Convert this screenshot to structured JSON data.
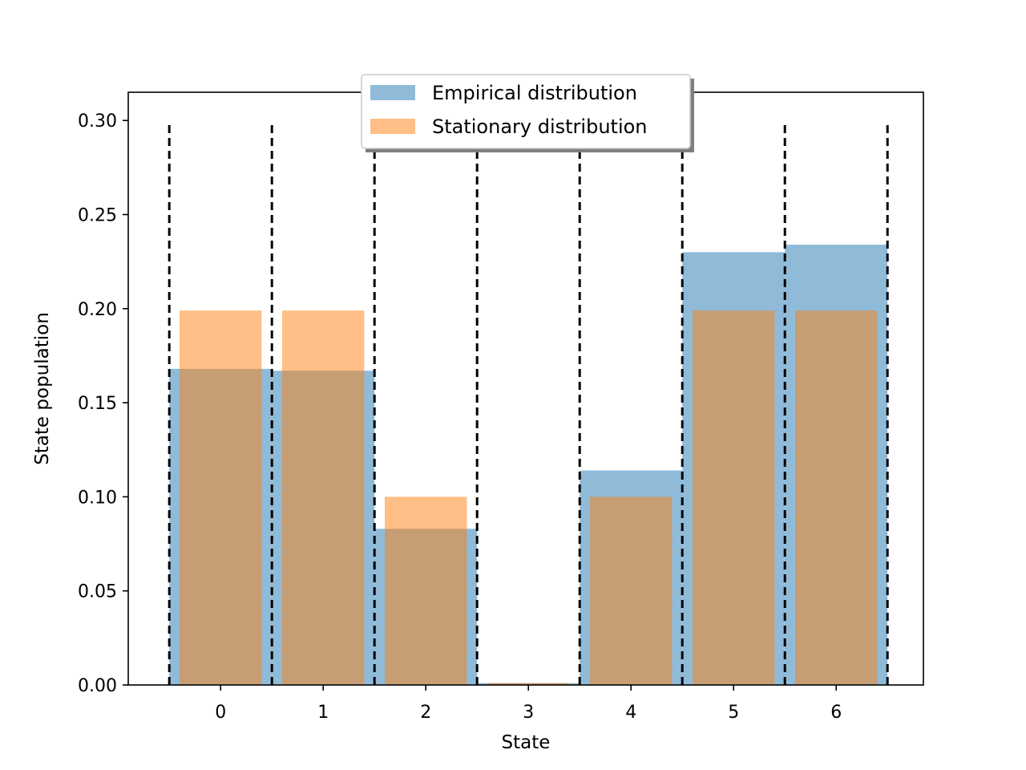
{
  "chart_data": {
    "type": "bar",
    "title": "",
    "xlabel": "State",
    "ylabel": "State population",
    "categories": [
      "0",
      "1",
      "2",
      "3",
      "4",
      "5",
      "6"
    ],
    "x": [
      0,
      1,
      2,
      3,
      4,
      5,
      6
    ],
    "xlim": [
      -0.9,
      6.85
    ],
    "ylim": [
      0,
      0.315
    ],
    "yticks": [
      0.0,
      0.05,
      0.1,
      0.15,
      0.2,
      0.25,
      0.3
    ],
    "ytick_labels": [
      "0.00",
      "0.05",
      "0.10",
      "0.15",
      "0.20",
      "0.25",
      "0.30"
    ],
    "legend_position": "top-center",
    "grid": false,
    "series": [
      {
        "name": "Empirical distribution",
        "color": "#1f77b4",
        "opacity": 0.5,
        "bar_width": 1.0,
        "values": [
          0.168,
          0.167,
          0.083,
          0.001,
          0.114,
          0.23,
          0.234
        ]
      },
      {
        "name": "Stationary distribution",
        "color": "#ff7f0e",
        "opacity": 0.5,
        "bar_width": 0.8,
        "values": [
          0.199,
          0.199,
          0.1,
          0.001,
          0.1,
          0.199,
          0.199
        ]
      }
    ],
    "boundary_lines": {
      "style": "dashed",
      "color": "#000000",
      "x": [
        -0.5,
        0.5,
        1.5,
        2.5,
        3.5,
        4.5,
        5.5,
        6.5
      ],
      "y_top": 0.3
    }
  }
}
